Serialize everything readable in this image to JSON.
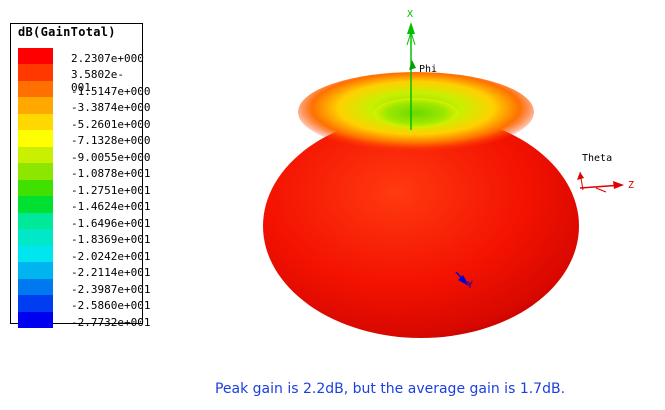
{
  "legend": {
    "title": "dB(GainTotal)",
    "entries": [
      {
        "label": "2.2307e+000",
        "color": "#ff0000"
      },
      {
        "label": "3.5802e-001",
        "color": "#ff3800"
      },
      {
        "label": "-1.5147e+000",
        "color": "#ff7000"
      },
      {
        "label": "-3.3874e+000",
        "color": "#ffa800"
      },
      {
        "label": "-5.2601e+000",
        "color": "#ffd800"
      },
      {
        "label": "-7.1328e+000",
        "color": "#ffff00"
      },
      {
        "label": "-9.0055e+000",
        "color": "#c8f000"
      },
      {
        "label": "-1.0878e+001",
        "color": "#8ce600"
      },
      {
        "label": "-1.2751e+001",
        "color": "#40e000"
      },
      {
        "label": "-1.4624e+001",
        "color": "#00e030"
      },
      {
        "label": "-1.6496e+001",
        "color": "#00e89a"
      },
      {
        "label": "-1.8369e+001",
        "color": "#00e8c8"
      },
      {
        "label": "-2.0242e+001",
        "color": "#00e6ee"
      },
      {
        "label": "-2.2114e+001",
        "color": "#00b4f0"
      },
      {
        "label": "-2.3987e+001",
        "color": "#0078f0"
      },
      {
        "label": "-2.5860e+001",
        "color": "#003cf0"
      },
      {
        "label": "-2.7732e+001",
        "color": "#0000f0"
      }
    ]
  },
  "axes": {
    "x_label": "X",
    "y_label": "Y",
    "z_label": "Z",
    "phi_label": "Phi",
    "theta_label": "Theta",
    "x_color": "#00c000",
    "y_color": "#0000d0",
    "z_color": "#e00000"
  },
  "caption": "Peak gain is 2.2dB, but the average gain is 1.7dB."
}
